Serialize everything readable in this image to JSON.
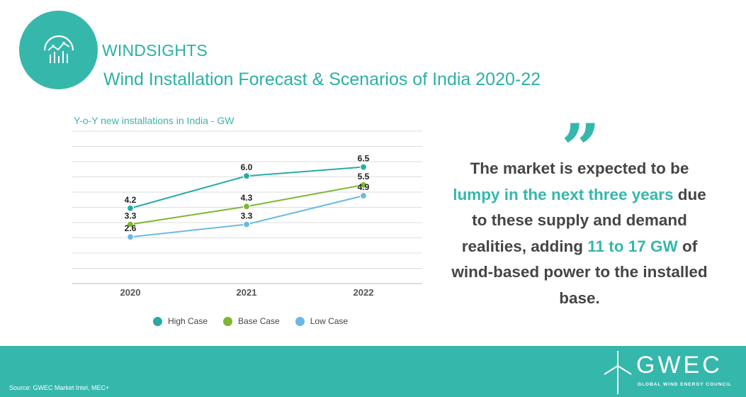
{
  "header": {
    "brand": "WINDSIGHTS",
    "title": "Wind Installation Forecast & Scenarios of India 2020-22",
    "logo_icon": "chart-analytics-icon"
  },
  "chart_data": {
    "type": "line",
    "title": "Y-o-Y new installations in India - GW",
    "x": [
      "2020",
      "2021",
      "2022"
    ],
    "ylim": [
      0,
      8.5
    ],
    "grid": true,
    "legend_position": "bottom",
    "series": [
      {
        "name": "High Case",
        "values": [
          4.2,
          6.0,
          6.5
        ],
        "color": "#26aca5"
      },
      {
        "name": "Base Case",
        "values": [
          3.3,
          4.3,
          5.5
        ],
        "color": "#7cb732"
      },
      {
        "name": "Low Case",
        "values": [
          2.6,
          3.3,
          4.9
        ],
        "color": "#6bb9e3"
      }
    ],
    "value_labels": [
      [
        "4.2",
        "6.0",
        "6.5"
      ],
      [
        "3.3",
        "4.3",
        "5.5"
      ],
      [
        "2.6",
        "3.3",
        "4.9"
      ]
    ]
  },
  "quote": {
    "icon": "quote-mark-icon",
    "text_1": "The market is expected to be",
    "highlight_1": "lumpy in the next three years",
    "text_2": " due to these supply and demand realities, adding ",
    "highlight_2": "11 to 17 GW",
    "text_3": " of wind-based power to the installed base."
  },
  "footer": {
    "source": "Source: GWEC Market Intel,  MEC+",
    "org_wordmark": "GWEC",
    "org_name": "GLOBAL WIND ENERGY COUNCIL",
    "logo_icon": "wind-turbine-icon"
  },
  "colors": {
    "accent": "#35b7ac",
    "high": "#26aca5",
    "base": "#7cb732",
    "low": "#6bb9e3"
  }
}
